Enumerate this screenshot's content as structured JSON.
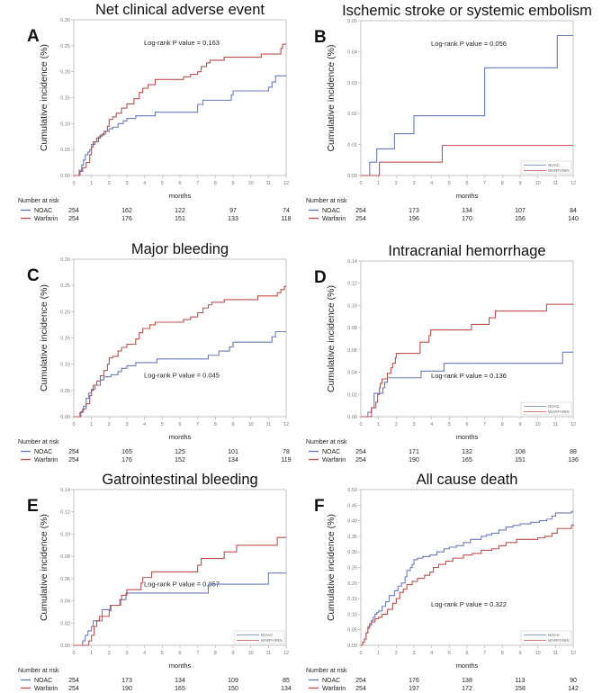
{
  "colors": {
    "noac": "#6a7bbf",
    "warfarin": "#c0504d",
    "axis": "#b5b5b5"
  },
  "common": {
    "xlabel": "months",
    "ylabel": "Cumulative incidence (%)",
    "risk_header": "Number at risk",
    "risk_times": [
      0,
      3,
      6,
      9,
      12
    ],
    "x_ticks": [
      0,
      1,
      2,
      3,
      4,
      5,
      6,
      7,
      8,
      9,
      10,
      11,
      12
    ],
    "legend_labels": {
      "noac": "NOAC",
      "warfarin": "WARFARIN"
    },
    "risk_labels": {
      "noac": "NOAC",
      "warfarin": "Warfarin"
    }
  },
  "chart_data": [
    {
      "type": "line",
      "letter": "A",
      "title": "Net clinical adverse event",
      "pvalue_text": "Log-rank P value = 0.163",
      "pvalue_position": "top-center",
      "legend": false,
      "xlim": [
        0,
        12
      ],
      "ylim": [
        0,
        0.3
      ],
      "y_ticks": [
        "0.00",
        "0.05",
        "0.10",
        "0.15",
        "0.20",
        "0.25",
        "0.30"
      ],
      "y_tick_values": [
        0,
        0.05,
        0.1,
        0.15,
        0.2,
        0.25,
        0.3
      ],
      "series": [
        {
          "name": "NOAC",
          "x": [
            0,
            0.3,
            0.45,
            0.55,
            0.65,
            0.8,
            0.9,
            1.0,
            1.2,
            1.4,
            1.6,
            1.8,
            2.0,
            2.2,
            2.5,
            2.8,
            3.0,
            3.5,
            4.6,
            7.0,
            7.3,
            8.9,
            9.0,
            11.0,
            11.2,
            11.4,
            12.0
          ],
          "y": [
            0,
            0.01,
            0.02,
            0.03,
            0.04,
            0.045,
            0.05,
            0.06,
            0.065,
            0.075,
            0.08,
            0.085,
            0.09,
            0.093,
            0.1,
            0.105,
            0.11,
            0.115,
            0.122,
            0.137,
            0.145,
            0.155,
            0.163,
            0.17,
            0.18,
            0.192,
            0.192
          ],
          "risk": [
            254,
            162,
            122,
            97,
            74
          ]
        },
        {
          "name": "Warfarin",
          "x": [
            0,
            0.35,
            0.5,
            0.7,
            0.9,
            1.0,
            1.1,
            1.3,
            1.5,
            1.7,
            1.9,
            2.0,
            2.2,
            2.4,
            2.7,
            3.0,
            3.4,
            3.7,
            3.9,
            4.2,
            4.6,
            6.2,
            6.6,
            7.0,
            7.2,
            7.5,
            7.7,
            8.5,
            10.6,
            11.7,
            11.8,
            12.0
          ],
          "y": [
            0,
            0.008,
            0.015,
            0.025,
            0.04,
            0.055,
            0.065,
            0.072,
            0.078,
            0.085,
            0.095,
            0.108,
            0.113,
            0.12,
            0.13,
            0.138,
            0.148,
            0.16,
            0.168,
            0.175,
            0.185,
            0.19,
            0.195,
            0.2,
            0.21,
            0.217,
            0.222,
            0.228,
            0.234,
            0.245,
            0.253,
            0.253
          ],
          "risk": [
            254,
            176,
            151,
            133,
            118
          ]
        }
      ]
    },
    {
      "type": "line",
      "letter": "B",
      "title": "Ischemic stroke or systemic embolism",
      "pvalue_text": "Log-rank P value = 0.056",
      "pvalue_position": "top-center",
      "legend": true,
      "xlim": [
        0,
        12
      ],
      "ylim": [
        0,
        0.05
      ],
      "y_ticks": [
        "0.00",
        "0.01",
        "0.02",
        "0.03",
        "0.04",
        "0.05"
      ],
      "y_tick_values": [
        0,
        0.01,
        0.02,
        0.03,
        0.04,
        0.05
      ],
      "series": [
        {
          "name": "NOAC",
          "x": [
            0,
            0.5,
            0.9,
            1.9,
            3.0,
            7.0,
            11.1,
            12.0
          ],
          "y": [
            0,
            0.0043,
            0.0086,
            0.0135,
            0.0193,
            0.0348,
            0.0452,
            0.0452
          ],
          "risk": [
            254,
            173,
            134,
            107,
            84
          ]
        },
        {
          "name": "Warfarin",
          "x": [
            0,
            1.05,
            4.6,
            12.0
          ],
          "y": [
            0,
            0.0043,
            0.0097,
            0.0097
          ],
          "risk": [
            254,
            196,
            170,
            156,
            140
          ]
        }
      ]
    },
    {
      "type": "line",
      "letter": "C",
      "title": "Major bleeding",
      "pvalue_text": "Log-rank P value = 0.045",
      "pvalue_position": "bottom-center",
      "legend": false,
      "xlim": [
        0,
        12
      ],
      "ylim": [
        0,
        0.3
      ],
      "y_ticks": [
        "0.00",
        "0.05",
        "0.10",
        "0.15",
        "0.20",
        "0.25",
        "0.30"
      ],
      "y_tick_values": [
        0,
        0.05,
        0.1,
        0.15,
        0.2,
        0.25,
        0.3
      ],
      "series": [
        {
          "name": "NOAC",
          "x": [
            0,
            0.4,
            0.55,
            0.7,
            0.85,
            1.0,
            1.2,
            1.5,
            1.7,
            2.1,
            2.5,
            2.7,
            3.0,
            3.5,
            4.7,
            7.6,
            8.2,
            8.8,
            9.0,
            11.2,
            11.4,
            12.0
          ],
          "y": [
            0,
            0.01,
            0.02,
            0.035,
            0.045,
            0.052,
            0.06,
            0.07,
            0.076,
            0.08,
            0.086,
            0.092,
            0.097,
            0.103,
            0.11,
            0.117,
            0.125,
            0.133,
            0.142,
            0.152,
            0.162,
            0.162
          ],
          "risk": [
            254,
            165,
            125,
            101,
            78
          ]
        },
        {
          "name": "Warfarin",
          "x": [
            0,
            0.35,
            0.5,
            0.7,
            0.9,
            1.0,
            1.1,
            1.3,
            1.5,
            1.7,
            1.9,
            2.0,
            2.2,
            2.5,
            2.7,
            3.0,
            3.5,
            3.7,
            3.9,
            4.3,
            4.6,
            6.2,
            6.6,
            7.0,
            7.3,
            7.6,
            7.8,
            8.5,
            10.4,
            11.5,
            11.7,
            11.9,
            12.0
          ],
          "y": [
            0,
            0.008,
            0.015,
            0.025,
            0.04,
            0.05,
            0.06,
            0.068,
            0.078,
            0.088,
            0.1,
            0.112,
            0.115,
            0.125,
            0.132,
            0.138,
            0.148,
            0.16,
            0.168,
            0.175,
            0.18,
            0.185,
            0.19,
            0.198,
            0.207,
            0.213,
            0.218,
            0.223,
            0.23,
            0.236,
            0.242,
            0.248,
            0.248
          ],
          "risk": [
            254,
            176,
            152,
            134,
            119
          ]
        }
      ]
    },
    {
      "type": "line",
      "letter": "D",
      "title": "Intracranial hemorrhage",
      "pvalue_text": "Log-rank P value = 0.136",
      "pvalue_position": "bottom-center",
      "legend": true,
      "xlim": [
        0,
        12
      ],
      "ylim": [
        0,
        0.14
      ],
      "y_ticks": [
        "0.00",
        "0.02",
        "0.04",
        "0.06",
        "0.08",
        "0.10",
        "0.12",
        "0.14"
      ],
      "y_tick_values": [
        0,
        0.02,
        0.04,
        0.06,
        0.08,
        0.1,
        0.12,
        0.14
      ],
      "series": [
        {
          "name": "NOAC",
          "x": [
            0,
            0.4,
            0.6,
            0.75,
            1.25,
            1.35,
            1.5,
            3.4,
            4.7,
            11.4,
            12.0
          ],
          "y": [
            0,
            0.004,
            0.008,
            0.021,
            0.026,
            0.031,
            0.035,
            0.041,
            0.048,
            0.058,
            0.058
          ],
          "risk": [
            254,
            171,
            132,
            108,
            88
          ]
        },
        {
          "name": "Warfarin",
          "x": [
            0,
            0.6,
            0.85,
            0.95,
            1.05,
            1.1,
            1.2,
            1.5,
            1.7,
            1.8,
            1.95,
            2.0,
            3.35,
            3.85,
            3.95,
            6.25,
            7.25,
            7.6,
            10.5,
            12.0
          ],
          "y": [
            0,
            0.008,
            0.013,
            0.02,
            0.026,
            0.03,
            0.034,
            0.039,
            0.044,
            0.048,
            0.053,
            0.057,
            0.067,
            0.073,
            0.078,
            0.083,
            0.089,
            0.095,
            0.101,
            0.101
          ],
          "risk": [
            254,
            190,
            165,
            151,
            136
          ]
        }
      ]
    },
    {
      "type": "line",
      "letter": "E",
      "title": "Gatrointestinal bleeding",
      "pvalue_text": "Log-rank P value = 0.357",
      "pvalue_position": "center",
      "legend": true,
      "xlim": [
        0,
        12
      ],
      "ylim": [
        0,
        0.14
      ],
      "y_ticks": [
        "0.00",
        "0.02",
        "0.04",
        "0.06",
        "0.08",
        "0.10",
        "0.12",
        "0.14"
      ],
      "y_tick_values": [
        0,
        0.02,
        0.04,
        0.06,
        0.08,
        0.1,
        0.12,
        0.14
      ],
      "series": [
        {
          "name": "NOAC",
          "x": [
            0,
            0.5,
            0.65,
            0.8,
            1.0,
            1.1,
            1.6,
            2.05,
            2.6,
            2.95,
            7.6,
            11.0,
            12.0
          ],
          "y": [
            0,
            0.004,
            0.009,
            0.013,
            0.017,
            0.022,
            0.032,
            0.036,
            0.041,
            0.047,
            0.055,
            0.065,
            0.065
          ],
          "risk": [
            254,
            173,
            134,
            109,
            85
          ]
        },
        {
          "name": "Warfarin",
          "x": [
            0,
            0.85,
            1.0,
            1.15,
            1.3,
            1.45,
            2.0,
            2.1,
            2.65,
            2.7,
            3.0,
            3.8,
            3.9,
            4.4,
            7.0,
            7.2,
            8.5,
            9.2,
            11.5,
            12.0
          ],
          "y": [
            0,
            0.004,
            0.009,
            0.017,
            0.022,
            0.026,
            0.031,
            0.036,
            0.041,
            0.045,
            0.05,
            0.056,
            0.061,
            0.066,
            0.072,
            0.078,
            0.084,
            0.09,
            0.097,
            0.097
          ],
          "risk": [
            254,
            190,
            165,
            150,
            134
          ]
        }
      ]
    },
    {
      "type": "line",
      "letter": "F",
      "title": "All cause death",
      "pvalue_text": "Log-rank P value = 0.322",
      "pvalue_position": "bottom-center",
      "legend": true,
      "xlim": [
        0,
        12
      ],
      "ylim": [
        0,
        0.5
      ],
      "y_ticks": [
        "0.00",
        "0.05",
        "0.10",
        "0.15",
        "0.20",
        "0.25",
        "0.30",
        "0.35",
        "0.40",
        "0.45",
        "0.50"
      ],
      "y_tick_values": [
        0,
        0.05,
        0.1,
        0.15,
        0.2,
        0.25,
        0.3,
        0.35,
        0.4,
        0.45,
        0.5
      ],
      "series": [
        {
          "name": "NOAC",
          "x": [
            0,
            0.1,
            0.2,
            0.3,
            0.4,
            0.5,
            0.6,
            0.7,
            0.8,
            0.9,
            1.0,
            1.2,
            1.4,
            1.6,
            1.9,
            2.1,
            2.3,
            2.5,
            2.6,
            2.8,
            2.9,
            3.0,
            3.2,
            3.5,
            3.9,
            4.3,
            4.7,
            5.0,
            5.4,
            5.8,
            6.2,
            6.8,
            7.1,
            7.4,
            7.8,
            8.2,
            8.6,
            9.0,
            9.6,
            10.1,
            10.5,
            10.8,
            11.0,
            11.9,
            12.0
          ],
          "y": [
            0,
            0.01,
            0.02,
            0.04,
            0.06,
            0.07,
            0.08,
            0.09,
            0.1,
            0.105,
            0.11,
            0.125,
            0.14,
            0.16,
            0.175,
            0.19,
            0.2,
            0.22,
            0.24,
            0.25,
            0.26,
            0.275,
            0.28,
            0.285,
            0.29,
            0.3,
            0.31,
            0.315,
            0.32,
            0.33,
            0.34,
            0.35,
            0.355,
            0.36,
            0.37,
            0.38,
            0.385,
            0.39,
            0.395,
            0.4,
            0.405,
            0.415,
            0.425,
            0.43,
            0.43
          ],
          "risk": [
            254,
            176,
            138,
            113,
            90
          ]
        },
        {
          "name": "Warfarin",
          "x": [
            0,
            0.1,
            0.2,
            0.3,
            0.4,
            0.5,
            0.6,
            0.8,
            1.0,
            1.2,
            1.5,
            1.8,
            2.0,
            2.2,
            2.4,
            2.6,
            2.9,
            3.2,
            3.6,
            3.9,
            4.1,
            4.4,
            4.8,
            5.2,
            5.8,
            6.3,
            6.8,
            7.4,
            7.8,
            8.2,
            8.8,
            9.6,
            10.0,
            10.4,
            10.8,
            11.1,
            11.9,
            12.0
          ],
          "y": [
            0,
            0.01,
            0.02,
            0.04,
            0.055,
            0.065,
            0.075,
            0.085,
            0.09,
            0.1,
            0.115,
            0.135,
            0.15,
            0.17,
            0.18,
            0.195,
            0.205,
            0.215,
            0.225,
            0.235,
            0.25,
            0.26,
            0.27,
            0.28,
            0.29,
            0.295,
            0.305,
            0.31,
            0.32,
            0.33,
            0.34,
            0.34,
            0.345,
            0.35,
            0.36,
            0.375,
            0.385,
            0.39
          ],
          "risk": [
            254,
            197,
            172,
            158,
            142
          ]
        }
      ]
    }
  ]
}
